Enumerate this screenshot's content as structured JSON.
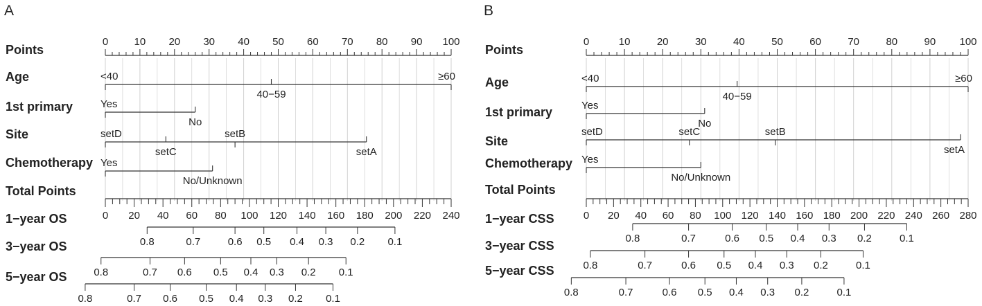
{
  "chart_data": [
    {
      "type": "nomogram",
      "panel": "A",
      "points_scale": {
        "label": "Points",
        "min": 0,
        "max": 100,
        "ticks": [
          0,
          10,
          20,
          30,
          40,
          50,
          60,
          70,
          80,
          90,
          100
        ]
      },
      "variables": [
        {
          "name": "Age",
          "levels": [
            {
              "label": "<40",
              "points": 0
            },
            {
              "label": "40−59",
              "points": 48
            },
            {
              "label": "≥60",
              "points": 100
            }
          ]
        },
        {
          "name": "1st primary",
          "levels": [
            {
              "label": "Yes",
              "points": 0
            },
            {
              "label": "No",
              "points": 26
            }
          ]
        },
        {
          "name": "Site",
          "levels": [
            {
              "label": "setD",
              "points": 0
            },
            {
              "label": "setC",
              "points": 17.5
            },
            {
              "label": "setB",
              "points": 37.5
            },
            {
              "label": "setA",
              "points": 75.5
            }
          ]
        },
        {
          "name": "Chemotherapy",
          "levels": [
            {
              "label": "Yes",
              "points": 0
            },
            {
              "label": "No/Unknown",
              "points": 31
            }
          ]
        }
      ],
      "total_points": {
        "label": "Total Points",
        "min": 0,
        "max": 240,
        "ticks": [
          0,
          20,
          40,
          60,
          80,
          100,
          120,
          140,
          160,
          180,
          200,
          220,
          240
        ],
        "minor_step": 5
      },
      "outcomes": [
        {
          "label": "1−year OS",
          "ticks": [
            {
              "value": "0.8",
              "total": 29
            },
            {
              "value": "0.7",
              "total": 61
            },
            {
              "value": "0.6",
              "total": 90
            },
            {
              "value": "0.5",
              "total": 110
            },
            {
              "value": "0.4",
              "total": 133
            },
            {
              "value": "0.3",
              "total": 153
            },
            {
              "value": "0.2",
              "total": 175
            },
            {
              "value": "0.1",
              "total": 201
            }
          ]
        },
        {
          "label": "3−year OS",
          "ticks": [
            {
              "value": "0.8",
              "total": -3
            },
            {
              "value": "0.7",
              "total": 31
            },
            {
              "value": "0.6",
              "total": 55
            },
            {
              "value": "0.5",
              "total": 80
            },
            {
              "value": "0.4",
              "total": 101
            },
            {
              "value": "0.3",
              "total": 119
            },
            {
              "value": "0.2",
              "total": 141
            },
            {
              "value": "0.1",
              "total": 167
            }
          ]
        },
        {
          "label": "5−year OS",
          "ticks": [
            {
              "value": "0.8",
              "total": -14
            },
            {
              "value": "0.7",
              "total": 20
            },
            {
              "value": "0.6",
              "total": 45
            },
            {
              "value": "0.5",
              "total": 70
            },
            {
              "value": "0.4",
              "total": 91
            },
            {
              "value": "0.3",
              "total": 111
            },
            {
              "value": "0.2",
              "total": 132
            },
            {
              "value": "0.1",
              "total": 158
            }
          ]
        }
      ]
    },
    {
      "type": "nomogram",
      "panel": "B",
      "points_scale": {
        "label": "Points",
        "min": 0,
        "max": 100,
        "ticks": [
          0,
          10,
          20,
          30,
          40,
          50,
          60,
          70,
          80,
          90,
          100
        ]
      },
      "variables": [
        {
          "name": "Age",
          "levels": [
            {
              "label": "<40",
              "points": 0
            },
            {
              "label": "40−59",
              "points": 39.5
            },
            {
              "label": "≥60",
              "points": 100
            }
          ]
        },
        {
          "name": "1st primary",
          "levels": [
            {
              "label": "Yes",
              "points": 0
            },
            {
              "label": "No",
              "points": 31
            }
          ]
        },
        {
          "name": "Site",
          "levels": [
            {
              "label": "setD",
              "points": 0
            },
            {
              "label": "setC",
              "points": 27
            },
            {
              "label": "setB",
              "points": 49.5
            },
            {
              "label": "setA",
              "points": 98
            }
          ]
        },
        {
          "name": "Chemotherapy",
          "levels": [
            {
              "label": "Yes",
              "points": 0
            },
            {
              "label": "No/Unknown",
              "points": 30
            }
          ]
        }
      ],
      "total_points": {
        "label": "Total Points",
        "min": 0,
        "max": 280,
        "ticks": [
          0,
          20,
          40,
          60,
          80,
          100,
          120,
          140,
          160,
          180,
          200,
          220,
          240,
          260,
          280
        ],
        "minor_step": 5
      },
      "outcomes": [
        {
          "label": "1−year CSS",
          "ticks": [
            {
              "value": "0.8",
              "total": 34
            },
            {
              "value": "0.7",
              "total": 75
            },
            {
              "value": "0.6",
              "total": 107
            },
            {
              "value": "0.5",
              "total": 132
            },
            {
              "value": "0.4",
              "total": 155
            },
            {
              "value": "0.3",
              "total": 178
            },
            {
              "value": "0.2",
              "total": 204
            },
            {
              "value": "0.1",
              "total": 235
            }
          ]
        },
        {
          "label": "3−year CSS",
          "ticks": [
            {
              "value": "0.8",
              "total": 3
            },
            {
              "value": "0.7",
              "total": 43
            },
            {
              "value": "0.6",
              "total": 75
            },
            {
              "value": "0.5",
              "total": 101
            },
            {
              "value": "0.4",
              "total": 124
            },
            {
              "value": "0.3",
              "total": 147
            },
            {
              "value": "0.2",
              "total": 172
            },
            {
              "value": "0.1",
              "total": 203
            }
          ]
        },
        {
          "label": "5−year CSS",
          "ticks": [
            {
              "value": "0.8",
              "total": -11
            },
            {
              "value": "0.7",
              "total": 29
            },
            {
              "value": "0.6",
              "total": 61
            },
            {
              "value": "0.5",
              "total": 87
            },
            {
              "value": "0.4",
              "total": 110
            },
            {
              "value": "0.3",
              "total": 133
            },
            {
              "value": "0.2",
              "total": 158
            },
            {
              "value": "0.1",
              "total": 189
            }
          ]
        }
      ]
    }
  ]
}
